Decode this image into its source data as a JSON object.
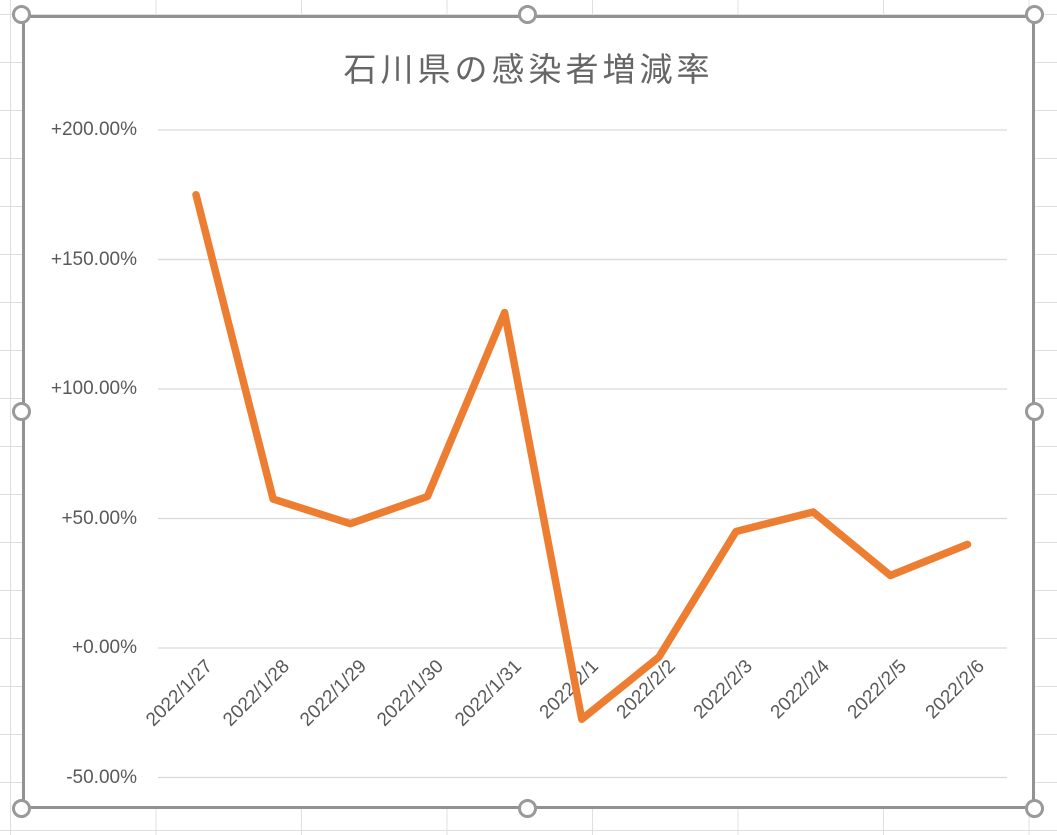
{
  "chart_data": {
    "type": "line",
    "title": "石川県の感染者増減率",
    "categories": [
      "2022/1/27",
      "2022/1/28",
      "2022/1/29",
      "2022/1/30",
      "2022/1/31",
      "2022/2/1",
      "2022/2/2",
      "2022/2/3",
      "2022/2/4",
      "2022/2/5",
      "2022/2/6"
    ],
    "values": [
      175.0,
      57.5,
      48.0,
      58.5,
      129.5,
      -27.5,
      -3.5,
      45.0,
      52.5,
      28.0,
      40.0
    ],
    "values_unit": "%",
    "y_axis": {
      "tick_labels": [
        "+200.00%",
        "+150.00%",
        "+100.00%",
        "+50.00%",
        "+0.00%",
        "-50.00%"
      ],
      "tick_values": [
        200,
        150,
        100,
        50,
        0,
        -50
      ],
      "ylim": [
        -50,
        200
      ]
    },
    "x_axis": {
      "tick_rotation_deg": -45
    },
    "grid": true,
    "legend": "none"
  },
  "chart_chrome": {
    "selected": true,
    "handles": [
      "top-left",
      "top-center",
      "top-right",
      "middle-left",
      "middle-right",
      "bottom-left",
      "bottom-center",
      "bottom-right"
    ]
  },
  "colors": {
    "series_line": "#ED7D31",
    "plot_gridline": "#D9D9D9",
    "axis_text": "#595959",
    "title_text": "#666666",
    "selection_border": "#929292",
    "sheet_gridline": "#DDE0E3"
  }
}
